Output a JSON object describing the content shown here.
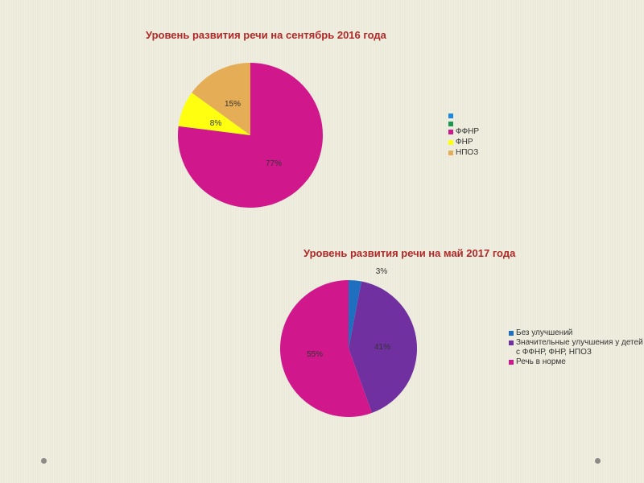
{
  "chart_data": [
    {
      "type": "pie",
      "title": "Уровень развития речи на сентябрь 2016 года",
      "slices": [
        {
          "label": "ФФНР",
          "value": 77,
          "display": "77%",
          "color": "#d0188c"
        },
        {
          "label": "ФНР",
          "value": 8,
          "display": "8%",
          "color": "#ffff10"
        },
        {
          "label": "НПОЗ",
          "value": 15,
          "display": "15%",
          "color": "#e5ad55"
        }
      ],
      "legend": [
        {
          "label": "",
          "color": "#1e88e5"
        },
        {
          "label": "",
          "color": "#1a9a50"
        },
        {
          "label": "ФФНР",
          "color": "#d0188c"
        },
        {
          "label": "ФНР",
          "color": "#ffff10"
        },
        {
          "label": "НПОЗ",
          "color": "#e5ad55"
        }
      ],
      "legend_position": "right"
    },
    {
      "type": "pie",
      "title": "Уровень развития речи на май 2017 года",
      "slices": [
        {
          "label": "Без улучшений",
          "value": 3,
          "display": "3%",
          "color": "#1f6fc0"
        },
        {
          "label": "Значительные улучшения у детей с ФФНР, ФНР, НПОЗ",
          "value": 41,
          "display": "41%",
          "color": "#7030a0"
        },
        {
          "label": "Речь в норме",
          "value": 55,
          "display": "55%",
          "color": "#d0188c"
        }
      ],
      "legend": [
        {
          "label": "Без улучшений",
          "color": "#1f6fc0"
        },
        {
          "label": "Значительные улучшения у детей с ФФНР, ФНР, НПОЗ",
          "color": "#7030a0"
        },
        {
          "label": "Речь в норме",
          "color": "#d0188c"
        }
      ],
      "legend_position": "right"
    }
  ]
}
